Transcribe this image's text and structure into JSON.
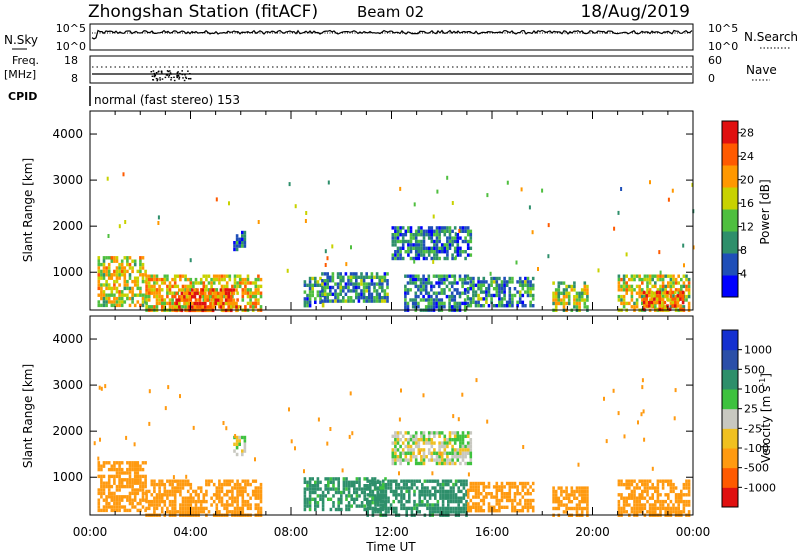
{
  "header": {
    "station": "Zhongshan Station (fitACF)",
    "beam": "Beam 02",
    "date": "18/Aug/2019"
  },
  "strips": {
    "nsky": {
      "label": "N.Sky",
      "ticks": [
        "10^5",
        "10^0"
      ],
      "right_ticks": [
        "10^5",
        "10^0"
      ],
      "right_label": "N.Search"
    },
    "freq": {
      "label_top": "Freq.",
      "label_unit": "[MHz]",
      "ticks": [
        "18",
        "8"
      ],
      "right_ticks": [
        "60",
        "0"
      ],
      "right_label": "Nave"
    },
    "cpid": {
      "label": "CPID",
      "value": "normal (fast stereo) 153"
    }
  },
  "axes": {
    "xlabel": "Time UT",
    "ylabel": "Slant Range [km]",
    "x_ticks": [
      "00:00",
      "04:00",
      "08:00",
      "12:00",
      "16:00",
      "20:00",
      "00:00"
    ],
    "y_ticks": [
      "1000",
      "2000",
      "3000",
      "4000"
    ]
  },
  "colors": {
    "power_scale": [
      "#0000ff",
      "#1f4fb8",
      "#2e8f6b",
      "#4fbf3f",
      "#c8d200",
      "#ff9800",
      "#ff5a00",
      "#e01010"
    ],
    "velocity_scale": [
      "#e01010",
      "#ff5a00",
      "#ff9a10",
      "#f0c020",
      "#c8c8c0",
      "#3ec23e",
      "#2e8f6b",
      "#2b4fa8",
      "#1430d0"
    ]
  },
  "chart_data": [
    {
      "type": "heatmap",
      "name_on_chart": "",
      "xlabel": "Time UT",
      "ylabel": "Slant Range [km]",
      "xlim_hours": [
        0,
        24
      ],
      "ylim_km": [
        180,
        4500
      ],
      "colorbar": {
        "label": "Power [dB]",
        "ticks": [
          "4",
          "8",
          "12",
          "16",
          "20",
          "24",
          "28"
        ],
        "range": [
          0,
          30
        ]
      },
      "regions": [
        {
          "t0": 0.3,
          "t1": 2.2,
          "r0": 250,
          "r1": 1350,
          "value": 18
        },
        {
          "t0": 2.2,
          "t1": 6.8,
          "r0": 200,
          "r1": 950,
          "value": 20
        },
        {
          "t0": 3.4,
          "t1": 5.8,
          "r0": 200,
          "r1": 650,
          "value": 26
        },
        {
          "t0": 5.7,
          "t1": 6.2,
          "r0": 1500,
          "r1": 1900,
          "value": 8
        },
        {
          "t0": 8.5,
          "t1": 9.3,
          "r0": 300,
          "r1": 900,
          "value": 10
        },
        {
          "t0": 9.2,
          "t1": 11.8,
          "r0": 350,
          "r1": 1000,
          "value": 10
        },
        {
          "t0": 12.0,
          "t1": 15.2,
          "r0": 1300,
          "r1": 2000,
          "value": 9
        },
        {
          "t0": 12.5,
          "t1": 15.0,
          "r0": 200,
          "r1": 950,
          "value": 9
        },
        {
          "t0": 15.0,
          "t1": 17.6,
          "r0": 300,
          "r1": 900,
          "value": 10
        },
        {
          "t0": 18.4,
          "t1": 19.8,
          "r0": 200,
          "r1": 800,
          "value": 16
        },
        {
          "t0": 21.0,
          "t1": 23.8,
          "r0": 200,
          "r1": 950,
          "value": 18
        },
        {
          "t0": 22.0,
          "t1": 23.6,
          "r0": 200,
          "r1": 600,
          "value": 25
        }
      ]
    },
    {
      "type": "heatmap",
      "name_on_chart": "",
      "xlabel": "Time UT",
      "ylabel": "Slant Range [km]",
      "xlim_hours": [
        0,
        24
      ],
      "ylim_km": [
        180,
        4500
      ],
      "colorbar": {
        "label": "Velocity [m s^-1]",
        "ticks": [
          "-1000",
          "-500",
          "-100",
          "-25",
          "25",
          "100",
          "500",
          "1000"
        ],
        "range": [
          -1300,
          1300
        ]
      },
      "regions": [
        {
          "t0": 0.3,
          "t1": 2.2,
          "r0": 250,
          "r1": 1350,
          "value": -220
        },
        {
          "t0": 2.2,
          "t1": 6.8,
          "r0": 200,
          "r1": 950,
          "value": -180
        },
        {
          "t0": 5.7,
          "t1": 6.2,
          "r0": 1500,
          "r1": 1900,
          "value": 0
        },
        {
          "t0": 8.5,
          "t1": 11.8,
          "r0": 300,
          "r1": 1000,
          "value": 160
        },
        {
          "t0": 12.0,
          "t1": 15.2,
          "r0": 1300,
          "r1": 2000,
          "value": 5
        },
        {
          "t0": 11.0,
          "t1": 15.0,
          "r0": 200,
          "r1": 950,
          "value": 170
        },
        {
          "t0": 15.0,
          "t1": 17.6,
          "r0": 300,
          "r1": 900,
          "value": -180
        },
        {
          "t0": 18.4,
          "t1": 19.8,
          "r0": 200,
          "r1": 800,
          "value": -200
        },
        {
          "t0": 21.0,
          "t1": 23.8,
          "r0": 200,
          "r1": 950,
          "value": -220
        }
      ]
    }
  ]
}
